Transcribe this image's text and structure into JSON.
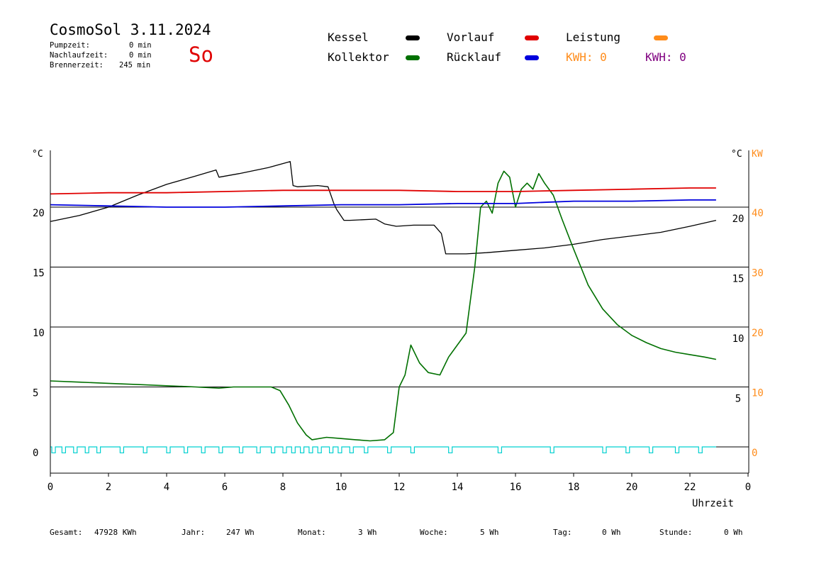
{
  "header": {
    "title": "CosmoSol 3.11.2024",
    "pumpzeit_label": "Pumpzeit:",
    "pumpzeit_value": "0 min",
    "nachlaufzeit_label": "Nachlaufzeit:",
    "nachlaufzeit_value": "0 min",
    "brennerzeit_label": "Brennerzeit:",
    "brennerzeit_value": "245 min",
    "day": "So"
  },
  "legend": {
    "kessel": "Kessel",
    "kollektor": "Kollektor",
    "vorlauf": "Vorlauf",
    "ruecklauf": "Rücklauf",
    "leistung": "Leistung",
    "kwh_orange": "KWH: 0",
    "kwh_purple": "KWH: 0"
  },
  "colors": {
    "kessel": "#000000",
    "kollektor": "#007000",
    "vorlauf": "#e00000",
    "ruecklauf": "#0000dd",
    "leistung": "#ff8c1a",
    "kwh_purple": "#800080",
    "pump": "#00d0d0",
    "right_kw_axis": "#ff8c1a"
  },
  "footer": {
    "gesamt_label": "Gesamt:",
    "gesamt_value": "47928 KWh",
    "jahr_label": "Jahr:",
    "jahr_value": "247 Wh",
    "monat_label": "Monat:",
    "monat_value": "3 Wh",
    "woche_label": "Woche:",
    "woche_value": "5 Wh",
    "tag_label": "Tag:",
    "tag_value": "0 Wh",
    "stunde_label": "Stunde:",
    "stunde_value": "0 Wh"
  },
  "chart_data": {
    "type": "line",
    "xlabel": "Uhrzeit",
    "ylabel_left": "°C",
    "ylabel_right_1": "°C",
    "ylabel_right_2": "KW",
    "xlim": [
      0,
      24
    ],
    "ylim": [
      -2,
      25
    ],
    "x_ticks": [
      "0",
      "2",
      "4",
      "6",
      "8",
      "10",
      "12",
      "14",
      "16",
      "18",
      "20",
      "22",
      "0"
    ],
    "left_ticks": [
      "0",
      "5",
      "10",
      "15",
      "20"
    ],
    "inner_right_ticks": [
      "5",
      "10",
      "15",
      "20"
    ],
    "kw_ticks": [
      "0",
      "10",
      "20",
      "30",
      "40"
    ],
    "gridlines": [
      5,
      10,
      15,
      20
    ],
    "series": [
      {
        "name": "Kessel",
        "x": [
          0,
          1,
          2,
          3,
          4,
          5,
          5.7,
          5.8,
          6.5,
          7.5,
          8.25,
          8.35,
          8.5,
          9.2,
          9.55,
          9.75,
          9.85,
          10.1,
          10.3,
          11.2,
          11.5,
          11.9,
          12.5,
          13.2,
          13.45,
          13.6,
          14.3,
          15,
          16,
          17,
          18,
          19,
          20,
          21,
          22,
          22.9
        ],
        "values": [
          18.8,
          19.3,
          20.0,
          21.0,
          21.9,
          22.6,
          23.1,
          22.5,
          22.8,
          23.3,
          23.8,
          21.8,
          21.7,
          21.8,
          21.7,
          20.3,
          19.8,
          18.9,
          18.9,
          19.0,
          18.6,
          18.4,
          18.5,
          18.5,
          17.8,
          16.1,
          16.1,
          16.2,
          16.4,
          16.6,
          16.9,
          17.3,
          17.6,
          17.9,
          18.4,
          18.9
        ]
      },
      {
        "name": "Kollektor",
        "x": [
          0,
          1,
          2,
          3,
          4,
          5,
          5.8,
          6.3,
          7,
          7.6,
          7.9,
          8.2,
          8.5,
          8.8,
          9,
          9.5,
          10,
          10.5,
          11,
          11.5,
          11.8,
          12,
          12.2,
          12.4,
          12.7,
          13,
          13.4,
          13.7,
          14,
          14.3,
          14.6,
          14.8,
          15,
          15.2,
          15.4,
          15.6,
          15.8,
          16,
          16.2,
          16.4,
          16.6,
          16.8,
          17,
          17.3,
          17.6,
          18,
          18.5,
          19,
          19.5,
          20,
          20.5,
          21,
          21.5,
          22,
          22.5,
          22.9
        ],
        "values": [
          5.5,
          5.4,
          5.3,
          5.2,
          5.1,
          5.0,
          4.9,
          5.0,
          5.0,
          5.0,
          4.7,
          3.5,
          2.0,
          1.0,
          0.6,
          0.8,
          0.7,
          0.6,
          0.5,
          0.6,
          1.2,
          5.0,
          6.0,
          8.5,
          7.0,
          6.2,
          6.0,
          7.5,
          8.5,
          9.5,
          15.0,
          20.0,
          20.5,
          19.5,
          22.0,
          23.0,
          22.5,
          20.0,
          21.5,
          22.0,
          21.5,
          22.8,
          22.0,
          21.0,
          19.0,
          16.5,
          13.5,
          11.5,
          10.2,
          9.3,
          8.7,
          8.2,
          7.9,
          7.7,
          7.5,
          7.3
        ]
      },
      {
        "name": "Vorlauf",
        "x": [
          0,
          2,
          4,
          6,
          8,
          10,
          12,
          14,
          16,
          18,
          20,
          22,
          22.9
        ],
        "values": [
          21.1,
          21.2,
          21.2,
          21.3,
          21.4,
          21.4,
          21.4,
          21.3,
          21.3,
          21.4,
          21.5,
          21.6,
          21.6
        ]
      },
      {
        "name": "Rücklauf",
        "x": [
          0,
          2,
          4,
          6,
          8,
          10,
          12,
          14,
          16,
          17,
          18,
          20,
          22,
          22.9
        ],
        "values": [
          20.2,
          20.1,
          20.0,
          20.0,
          20.1,
          20.2,
          20.2,
          20.3,
          20.3,
          20.4,
          20.5,
          20.5,
          20.6,
          20.6
        ]
      }
    ],
    "pump_pulses_x": [
      0.05,
      0.4,
      0.8,
      1.2,
      1.6,
      2.4,
      3.2,
      4.0,
      4.6,
      5.2,
      5.8,
      6.5,
      7.1,
      7.6,
      8.0,
      8.3,
      8.6,
      8.9,
      9.2,
      9.6,
      9.9,
      10.3,
      10.8,
      11.6,
      12.4,
      13.7,
      15.4,
      17.2,
      19.0,
      19.8,
      20.6,
      21.5,
      22.3
    ],
    "pump_base": -0.5,
    "pump_high": 0
  }
}
